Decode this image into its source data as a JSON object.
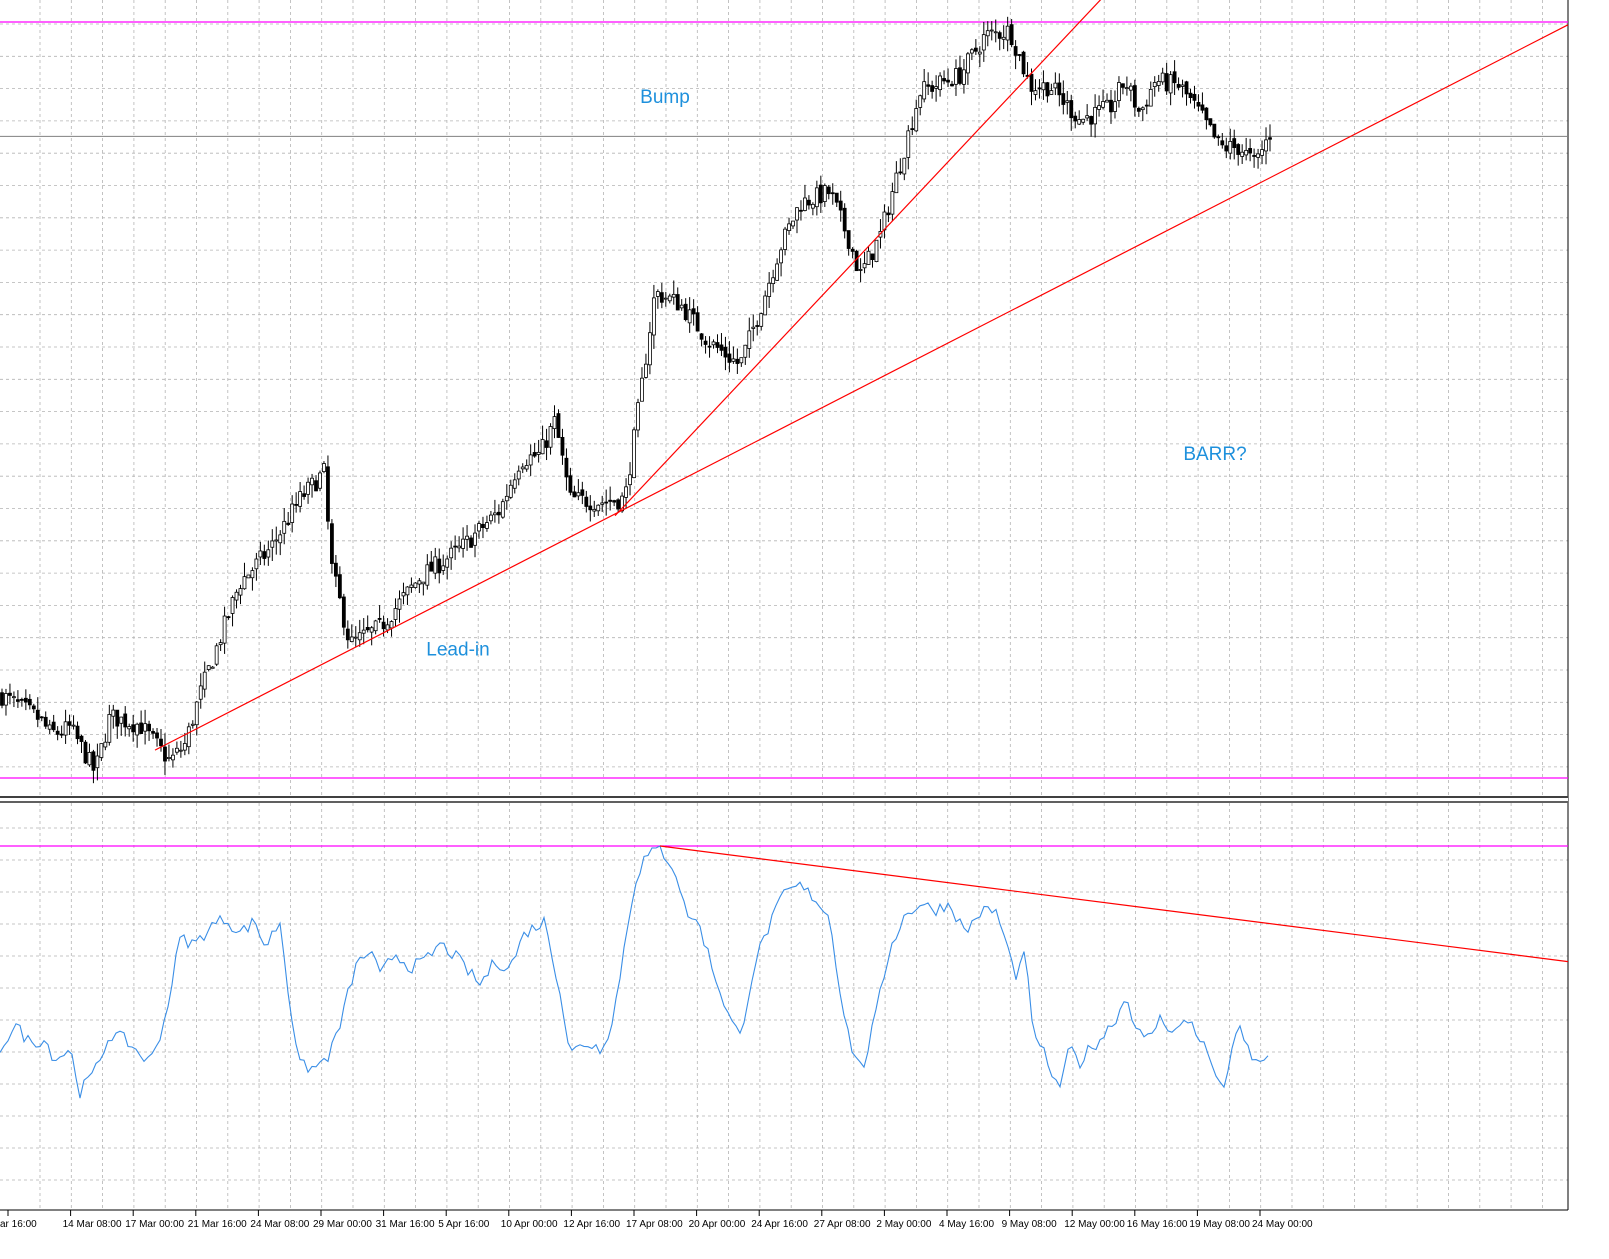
{
  "chart_data": [
    {
      "panel": "price",
      "type": "candlestick",
      "x_labels": [
        "ar 16:00",
        "14 Mar 08:00",
        "17 Mar 00:00",
        "21 Mar 16:00",
        "24 Mar 08:00",
        "29 Mar 00:00",
        "31 Mar 16:00",
        "5 Apr 16:00",
        "10 Apr 00:00",
        "12 Apr 16:00",
        "17 Apr 08:00",
        "20 Apr 00:00",
        "24 Apr 16:00",
        "27 Apr 08:00",
        "2 May 00:00",
        "4 May 16:00",
        "9 May 08:00",
        "12 May 00:00",
        "16 May 16:00",
        "19 May 08:00",
        "24 May 00:00"
      ],
      "bar_count": 320,
      "price_path": [
        [
          0,
          0.15
        ],
        [
          20,
          0.128
        ],
        [
          40,
          0.105
        ],
        [
          50,
          0.08
        ],
        [
          60,
          0.082
        ],
        [
          70,
          0.09
        ],
        [
          80,
          0.06
        ],
        [
          95,
          0.01
        ],
        [
          110,
          0.11
        ],
        [
          140,
          0.095
        ],
        [
          170,
          0.03
        ],
        [
          185,
          0.06
        ],
        [
          200,
          0.15
        ],
        [
          240,
          0.35
        ],
        [
          270,
          0.41
        ],
        [
          300,
          0.5
        ],
        [
          325,
          0.55
        ],
        [
          330,
          0.39
        ],
        [
          350,
          0.24
        ],
        [
          380,
          0.27
        ],
        [
          420,
          0.36
        ],
        [
          460,
          0.41
        ],
        [
          500,
          0.48
        ],
        [
          520,
          0.57
        ],
        [
          540,
          0.58
        ],
        [
          555,
          0.64
        ],
        [
          570,
          0.5
        ],
        [
          600,
          0.495
        ],
        [
          625,
          0.5
        ],
        [
          640,
          0.68
        ],
        [
          655,
          0.87
        ],
        [
          680,
          0.85
        ],
        [
          710,
          0.78
        ],
        [
          740,
          0.74
        ],
        [
          760,
          0.84
        ],
        [
          780,
          0.95
        ],
        [
          800,
          1.03
        ],
        [
          830,
          1.05
        ],
        [
          850,
          0.96
        ],
        [
          860,
          0.9
        ],
        [
          880,
          0.97
        ],
        [
          900,
          1.1
        ],
        [
          920,
          1.23
        ],
        [
          960,
          1.26
        ],
        [
          985,
          1.33
        ],
        [
          1010,
          1.34
        ],
        [
          1030,
          1.24
        ],
        [
          1050,
          1.24
        ],
        [
          1080,
          1.18
        ],
        [
          1110,
          1.2
        ],
        [
          1125,
          1.25
        ],
        [
          1140,
          1.19
        ],
        [
          1155,
          1.25
        ],
        [
          1180,
          1.24
        ],
        [
          1200,
          1.19
        ],
        [
          1220,
          1.13
        ],
        [
          1240,
          1.13
        ],
        [
          1255,
          1.1
        ],
        [
          1270,
          1.155
        ]
      ],
      "guide_lines": {
        "top_level": 1.355,
        "bottom_level": 0.0,
        "current_level": 1.15
      },
      "trendlines": [
        {
          "name": "lead-in-line",
          "from": [
            155,
            0.05
          ],
          "to": [
            1568,
            1.35
          ]
        },
        {
          "name": "bump-line",
          "from": [
            615,
            0.47
          ],
          "to": [
            1140,
            1.47
          ]
        }
      ],
      "annotations": [
        {
          "text": "Bump",
          "x": 665,
          "y": 1.21
        },
        {
          "text": "Lead-in",
          "x": 458,
          "y": 0.22
        },
        {
          "text": "BARR?",
          "x": 1215,
          "y": 0.57
        }
      ],
      "colors": {
        "candle": "#000000",
        "trendline": "#ff0000",
        "level": "#ff00ff",
        "current": "#808080",
        "annotation": "#1e90dc",
        "grid": "#b4b4b4"
      }
    },
    {
      "panel": "indicator",
      "type": "line",
      "series": [
        {
          "color": "#3a8ee6",
          "path": [
            [
              0,
              0.3
            ],
            [
              15,
              0.38
            ],
            [
              30,
              0.32
            ],
            [
              45,
              0.33
            ],
            [
              55,
              0.26
            ],
            [
              70,
              0.3
            ],
            [
              80,
              0.15
            ],
            [
              95,
              0.22
            ],
            [
              110,
              0.35
            ],
            [
              125,
              0.33
            ],
            [
              140,
              0.28
            ],
            [
              150,
              0.25
            ],
            [
              165,
              0.4
            ],
            [
              180,
              0.68
            ],
            [
              195,
              0.66
            ],
            [
              210,
              0.72
            ],
            [
              225,
              0.75
            ],
            [
              240,
              0.7
            ],
            [
              255,
              0.74
            ],
            [
              265,
              0.65
            ],
            [
              280,
              0.74
            ],
            [
              290,
              0.45
            ],
            [
              300,
              0.24
            ],
            [
              315,
              0.23
            ],
            [
              330,
              0.28
            ],
            [
              340,
              0.38
            ],
            [
              355,
              0.58
            ],
            [
              370,
              0.64
            ],
            [
              380,
              0.55
            ],
            [
              395,
              0.63
            ],
            [
              410,
              0.58
            ],
            [
              425,
              0.6
            ],
            [
              440,
              0.66
            ],
            [
              455,
              0.62
            ],
            [
              470,
              0.56
            ],
            [
              480,
              0.52
            ],
            [
              495,
              0.6
            ],
            [
              510,
              0.58
            ],
            [
              525,
              0.7
            ],
            [
              545,
              0.74
            ],
            [
              560,
              0.5
            ],
            [
              570,
              0.28
            ],
            [
              585,
              0.32
            ],
            [
              600,
              0.3
            ],
            [
              612,
              0.38
            ],
            [
              622,
              0.6
            ],
            [
              635,
              0.88
            ],
            [
              645,
              0.96
            ],
            [
              660,
              0.99
            ],
            [
              675,
              0.92
            ],
            [
              685,
              0.78
            ],
            [
              700,
              0.72
            ],
            [
              715,
              0.55
            ],
            [
              730,
              0.4
            ],
            [
              740,
              0.34
            ],
            [
              755,
              0.6
            ],
            [
              770,
              0.73
            ],
            [
              785,
              0.84
            ],
            [
              800,
              0.86
            ],
            [
              815,
              0.82
            ],
            [
              830,
              0.75
            ],
            [
              840,
              0.5
            ],
            [
              850,
              0.32
            ],
            [
              862,
              0.22
            ],
            [
              875,
              0.4
            ],
            [
              890,
              0.65
            ],
            [
              905,
              0.76
            ],
            [
              920,
              0.8
            ],
            [
              935,
              0.78
            ],
            [
              950,
              0.8
            ],
            [
              965,
              0.7
            ],
            [
              980,
              0.77
            ],
            [
              995,
              0.78
            ],
            [
              1005,
              0.68
            ],
            [
              1015,
              0.55
            ],
            [
              1025,
              0.62
            ],
            [
              1035,
              0.32
            ],
            [
              1045,
              0.28
            ],
            [
              1058,
              0.15
            ],
            [
              1070,
              0.3
            ],
            [
              1080,
              0.25
            ],
            [
              1090,
              0.3
            ],
            [
              1100,
              0.33
            ],
            [
              1115,
              0.4
            ],
            [
              1127,
              0.48
            ],
            [
              1135,
              0.38
            ],
            [
              1145,
              0.32
            ],
            [
              1160,
              0.4
            ],
            [
              1175,
              0.36
            ],
            [
              1190,
              0.4
            ],
            [
              1205,
              0.3
            ],
            [
              1215,
              0.22
            ],
            [
              1222,
              0.14
            ],
            [
              1232,
              0.3
            ],
            [
              1240,
              0.36
            ],
            [
              1250,
              0.28
            ],
            [
              1260,
              0.24
            ],
            [
              1270,
              0.3
            ]
          ]
        }
      ],
      "guide_lines": {
        "top_level": 1.0
      },
      "trendlines": [
        {
          "name": "indicator-divergence-line",
          "from": [
            660,
            1.0
          ],
          "to": [
            1568,
            0.6
          ]
        }
      ]
    }
  ]
}
